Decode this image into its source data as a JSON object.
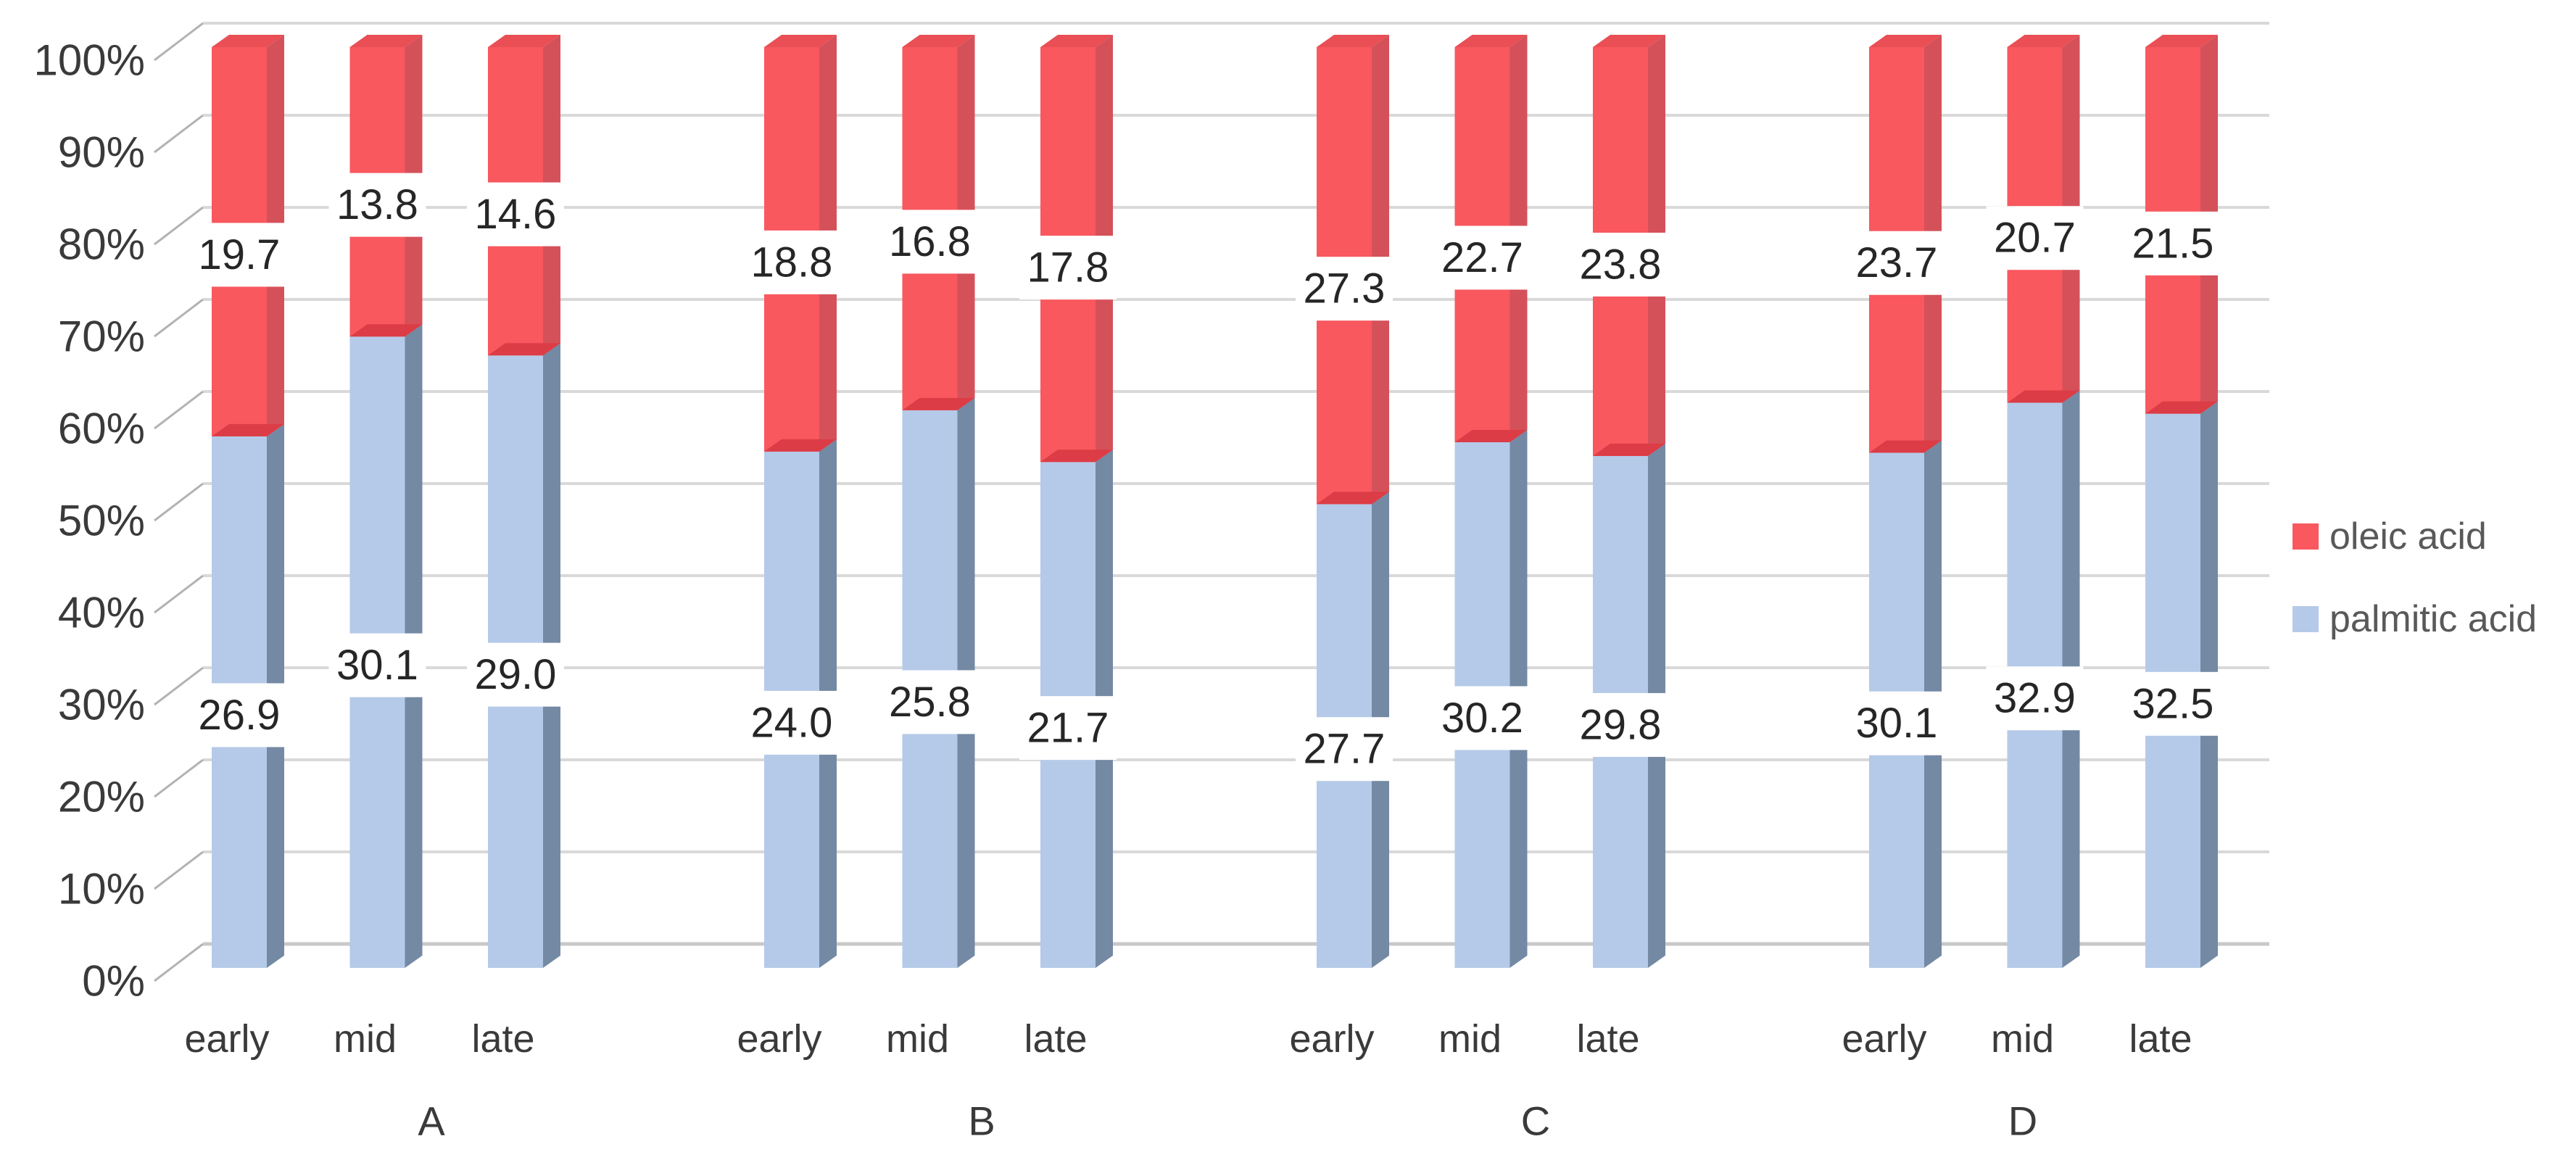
{
  "chart_data": {
    "type": "bar",
    "subtype": "3d-100-percent-stacked-column",
    "title": "",
    "xlabel": "",
    "ylabel": "",
    "ylim": [
      0,
      100
    ],
    "grid": true,
    "legend_position": "right",
    "y_ticks": [
      "0%",
      "10%",
      "20%",
      "30%",
      "40%",
      "50%",
      "60%",
      "70%",
      "80%",
      "90%",
      "100%"
    ],
    "groups": [
      "A",
      "B",
      "C",
      "D"
    ],
    "stages": [
      "early",
      "mid",
      "late"
    ],
    "series": [
      {
        "name": "palmitic acid",
        "color": "#B5CAE8",
        "values": {
          "A": [
            26.9,
            30.1,
            29.0
          ],
          "B": [
            24.0,
            25.8,
            21.7
          ],
          "C": [
            27.7,
            30.2,
            29.8
          ],
          "D": [
            30.1,
            32.9,
            32.5
          ]
        }
      },
      {
        "name": "oleic acid",
        "color": "#F8585E",
        "values": {
          "A": [
            19.7,
            13.8,
            14.6
          ],
          "B": [
            18.8,
            16.8,
            17.8
          ],
          "C": [
            27.3,
            22.7,
            23.8
          ],
          "D": [
            23.7,
            20.7,
            21.5
          ]
        }
      }
    ],
    "data_labels_shown": true,
    "data_label_format": "0.0"
  },
  "legend": {
    "items": [
      {
        "label": "oleic acid",
        "color": "#F8585E"
      },
      {
        "label": "palmitic acid",
        "color": "#B5CAE8"
      }
    ]
  },
  "colors": {
    "background": "#FFFFFF",
    "oleic_front": "#F8585E",
    "oleic_side": "#D5515A",
    "oleic_top": "#E94F55",
    "oleic_bottom_band": "#DC3C46",
    "palmitic_front": "#B5CAE8",
    "palmitic_side": "#7489A3",
    "gridline": "#D9D9D9",
    "floor_line": "#C8C8C8",
    "axis_tick": "#B3B3B3",
    "axis_text": "#3A3A3A",
    "data_label_text": "#262626",
    "legend_text": "#595959"
  }
}
